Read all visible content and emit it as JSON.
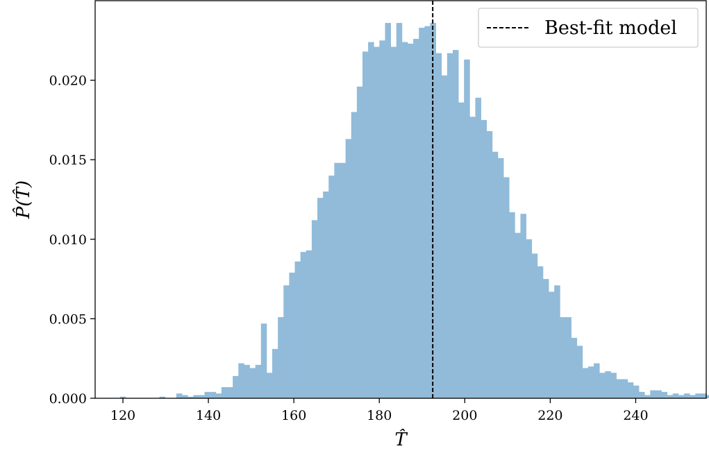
{
  "chart_data": {
    "type": "bar",
    "subtype": "histogram",
    "title": "",
    "xlabel": "T̂",
    "ylabel": "P̂(T̂)",
    "xlim": [
      113.5,
      256.5
    ],
    "ylim": [
      0,
      0.025
    ],
    "x_ticks": [
      120,
      140,
      160,
      180,
      200,
      220,
      240
    ],
    "x_tick_labels": [
      "120",
      "140",
      "160",
      "180",
      "200",
      "220",
      "240"
    ],
    "y_ticks": [
      0.0,
      0.005,
      0.01,
      0.015,
      0.02
    ],
    "y_tick_labels": [
      "0.000",
      "0.005",
      "0.010",
      "0.015",
      "0.020"
    ],
    "grid": false,
    "bar_color": "#91bbd9",
    "bin_width": 1.32,
    "bin_start": 119.3,
    "values": [
      0.0001,
      0.0,
      0.0,
      0.0,
      0.0,
      0.0,
      0.0,
      0.0001,
      0.0,
      0.0,
      0.0003,
      0.0002,
      0.0001,
      0.0002,
      0.0002,
      0.0004,
      0.0004,
      0.0003,
      0.0007,
      0.0007,
      0.0014,
      0.0022,
      0.0021,
      0.0019,
      0.0021,
      0.0047,
      0.0016,
      0.0031,
      0.0051,
      0.0071,
      0.0079,
      0.0086,
      0.0092,
      0.0093,
      0.0112,
      0.0126,
      0.013,
      0.014,
      0.0148,
      0.0148,
      0.0163,
      0.018,
      0.0196,
      0.0218,
      0.0224,
      0.0221,
      0.0225,
      0.0236,
      0.0221,
      0.0236,
      0.0224,
      0.0223,
      0.0226,
      0.0233,
      0.0234,
      0.0236,
      0.0217,
      0.0203,
      0.0217,
      0.0219,
      0.0186,
      0.0213,
      0.0177,
      0.0189,
      0.0175,
      0.0168,
      0.0155,
      0.0151,
      0.0139,
      0.0117,
      0.0104,
      0.0116,
      0.01,
      0.0091,
      0.0083,
      0.0075,
      0.0067,
      0.0071,
      0.0051,
      0.0051,
      0.0038,
      0.0033,
      0.0019,
      0.002,
      0.0022,
      0.0016,
      0.0017,
      0.0016,
      0.0012,
      0.0012,
      0.001,
      0.0008,
      0.0004,
      0.0002,
      0.0005,
      0.0005,
      0.0004,
      0.0002,
      0.0003,
      0.0002,
      0.0003,
      0.0002,
      0.0003,
      0.0003,
      0.0002,
      0.0002,
      0.0001
    ],
    "reference_line": {
      "x": 192.5,
      "style": "dashed",
      "color": "#000000"
    },
    "legend": {
      "position": "top-right",
      "entries": [
        {
          "label": "Best-fit model",
          "style": "dashed"
        }
      ]
    }
  }
}
